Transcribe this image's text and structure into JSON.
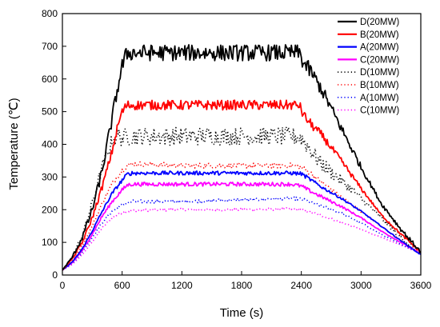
{
  "chart_data": {
    "type": "line",
    "xlabel": "Time (s)",
    "ylabel": "Temperature (℃)",
    "xlim": [
      0,
      3600
    ],
    "ylim": [
      0,
      800
    ],
    "xticks": [
      0,
      600,
      1200,
      1800,
      2400,
      3000,
      3600
    ],
    "yticks": [
      0,
      100,
      200,
      300,
      400,
      500,
      600,
      700,
      800
    ],
    "xtick_labels": [
      "0",
      "600",
      "1200",
      "1800",
      "2400",
      "3000",
      "3600"
    ],
    "ytick_labels": [
      "0",
      "100",
      "200",
      "300",
      "400",
      "500",
      "600",
      "700",
      "800"
    ],
    "legend_position": "top-right",
    "grid": false,
    "series": [
      {
        "name": "D(20MW)",
        "color": "#000000",
        "style": "solid",
        "noise": 25,
        "x": [
          0,
          100,
          200,
          300,
          400,
          500,
          560,
          600,
          650,
          700,
          800,
          1200,
          1800,
          2300,
          2380,
          2420,
          2500,
          2600,
          2800,
          3000,
          3200,
          3400,
          3600
        ],
        "y": [
          15,
          55,
          115,
          200,
          320,
          480,
          580,
          640,
          680,
          680,
          680,
          680,
          680,
          680,
          680,
          650,
          620,
          570,
          450,
          330,
          220,
          140,
          70
        ]
      },
      {
        "name": "B(20MW)",
        "color": "#ff0000",
        "style": "solid",
        "noise": 15,
        "x": [
          0,
          100,
          200,
          300,
          400,
          500,
          560,
          600,
          650,
          700,
          1200,
          1800,
          2300,
          2380,
          2420,
          2500,
          2600,
          2800,
          3000,
          3200,
          3400,
          3600
        ],
        "y": [
          15,
          50,
          100,
          175,
          270,
          380,
          460,
          500,
          520,
          520,
          520,
          520,
          520,
          520,
          490,
          460,
          430,
          350,
          265,
          185,
          125,
          70
        ]
      },
      {
        "name": "A(20MW)",
        "color": "#0000ff",
        "style": "solid",
        "noise": 6,
        "x": [
          0,
          100,
          200,
          300,
          400,
          500,
          600,
          650,
          700,
          1200,
          1800,
          2300,
          2400,
          2500,
          2600,
          2800,
          3000,
          3200,
          3400,
          3600
        ],
        "y": [
          15,
          40,
          80,
          135,
          195,
          250,
          290,
          308,
          312,
          312,
          312,
          312,
          310,
          290,
          270,
          235,
          195,
          150,
          105,
          62
        ]
      },
      {
        "name": "C(20MW)",
        "color": "#ff00ff",
        "style": "solid",
        "noise": 6,
        "x": [
          0,
          100,
          200,
          300,
          400,
          500,
          600,
          650,
          700,
          1200,
          1800,
          2300,
          2400,
          2500,
          2600,
          2800,
          3000,
          3200,
          3400,
          3600
        ],
        "y": [
          15,
          38,
          75,
          125,
          180,
          225,
          260,
          275,
          278,
          278,
          278,
          278,
          272,
          255,
          240,
          210,
          175,
          135,
          100,
          65
        ]
      },
      {
        "name": "D(10MW)",
        "color": "#000000",
        "style": "dotted",
        "noise": 28,
        "x": [
          0,
          100,
          200,
          300,
          400,
          500,
          560,
          600,
          700,
          1200,
          1800,
          2300,
          2400,
          2500,
          2600,
          2800,
          3000,
          3200,
          3400,
          3600
        ],
        "y": [
          15,
          55,
          120,
          220,
          330,
          410,
          430,
          420,
          425,
          425,
          425,
          425,
          420,
          380,
          340,
          290,
          235,
          175,
          115,
          65
        ]
      },
      {
        "name": "B(10MW)",
        "color": "#ff0000",
        "style": "dotted",
        "noise": 8,
        "x": [
          0,
          100,
          200,
          300,
          400,
          500,
          600,
          650,
          700,
          1200,
          1800,
          2300,
          2400,
          2500,
          2600,
          2800,
          3000,
          3200,
          3400,
          3600
        ],
        "y": [
          15,
          45,
          90,
          150,
          220,
          280,
          320,
          335,
          340,
          335,
          335,
          335,
          330,
          310,
          285,
          240,
          195,
          150,
          105,
          65
        ]
      },
      {
        "name": "A(10MW)",
        "color": "#0000ff",
        "style": "dotted",
        "noise": 5,
        "x": [
          0,
          100,
          200,
          300,
          400,
          500,
          600,
          700,
          1200,
          1800,
          2300,
          2400,
          2500,
          2600,
          2800,
          3000,
          3200,
          3400,
          3600
        ],
        "y": [
          15,
          35,
          70,
          115,
          160,
          195,
          215,
          225,
          225,
          230,
          235,
          232,
          222,
          212,
          190,
          160,
          125,
          95,
          65
        ]
      },
      {
        "name": "C(10MW)",
        "color": "#ff00ff",
        "style": "dotted",
        "noise": 4,
        "x": [
          0,
          100,
          200,
          300,
          400,
          500,
          600,
          700,
          1200,
          1800,
          2300,
          2400,
          2500,
          2600,
          2800,
          3000,
          3200,
          3400,
          3600
        ],
        "y": [
          15,
          32,
          62,
          102,
          145,
          175,
          192,
          198,
          200,
          200,
          202,
          200,
          192,
          182,
          162,
          140,
          115,
          92,
          65
        ]
      }
    ]
  }
}
